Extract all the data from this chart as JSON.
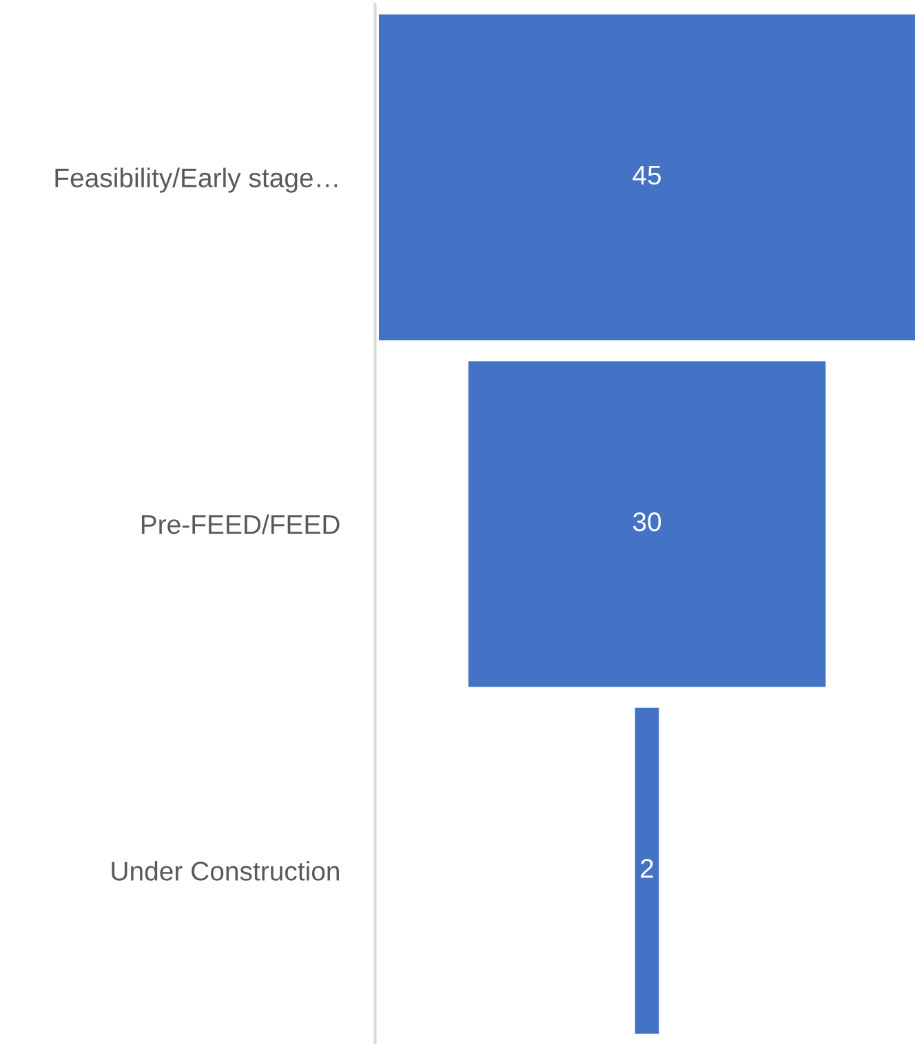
{
  "chart_data": {
    "type": "other",
    "categories": [
      "Feasibility/Early stage…",
      "Pre-FEED/FEED",
      "Under Construction"
    ],
    "values": [
      45,
      30,
      2
    ],
    "color": "#4472c4",
    "data_labels": true
  }
}
